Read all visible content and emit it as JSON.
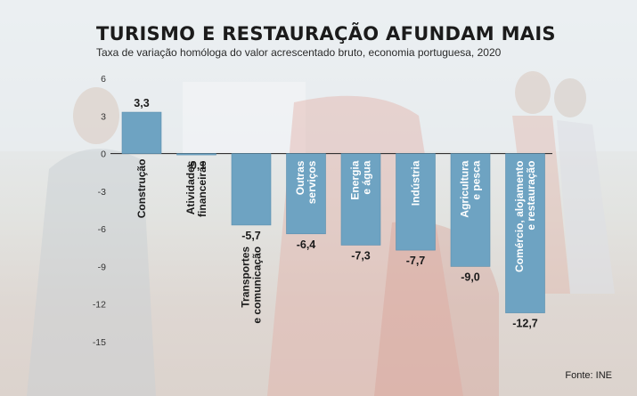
{
  "title": "TURISMO E RESTAURAÇÃO AFUNDAM MAIS",
  "subtitle": "Taxa de variação homóloga do valor acrescentado bruto, economia portuguesa, 2020",
  "source": "Fonte: INE",
  "colors": {
    "bar": "#6ea3c2",
    "bar_edge": "#5b8fae",
    "label_on_bar": "#ffffff",
    "label_dark": "#1b1b1b"
  },
  "chart_data": {
    "type": "bar",
    "title": "TURISMO E RESTAURAÇÃO AFUNDAM MAIS",
    "subtitle": "Taxa de variação homóloga do valor acrescentado bruto, economia portuguesa, 2020",
    "ylim": [
      -15,
      6
    ],
    "yticks": [
      6,
      3,
      0,
      -3,
      -6,
      -9,
      -12,
      -15
    ],
    "grid": false,
    "categories": [
      [
        "Construção"
      ],
      [
        "Atividades",
        "financeiras"
      ],
      [
        "Transportes",
        "e comunicação"
      ],
      [
        "Outras",
        "serviços"
      ],
      [
        "Energia",
        "e água"
      ],
      [
        "Indústria"
      ],
      [
        "Agricultura",
        "e pesca"
      ],
      [
        "Comércio, alojamento",
        "e restauração"
      ]
    ],
    "values": [
      3.3,
      -0.1,
      -5.7,
      -6.4,
      -7.3,
      -7.7,
      -9.0,
      -12.7
    ],
    "value_labels": [
      "3,3",
      "-0,1",
      "-5,7",
      "-6,4",
      "-7,3",
      "-7,7",
      "-9,0",
      "-12,7"
    ]
  }
}
